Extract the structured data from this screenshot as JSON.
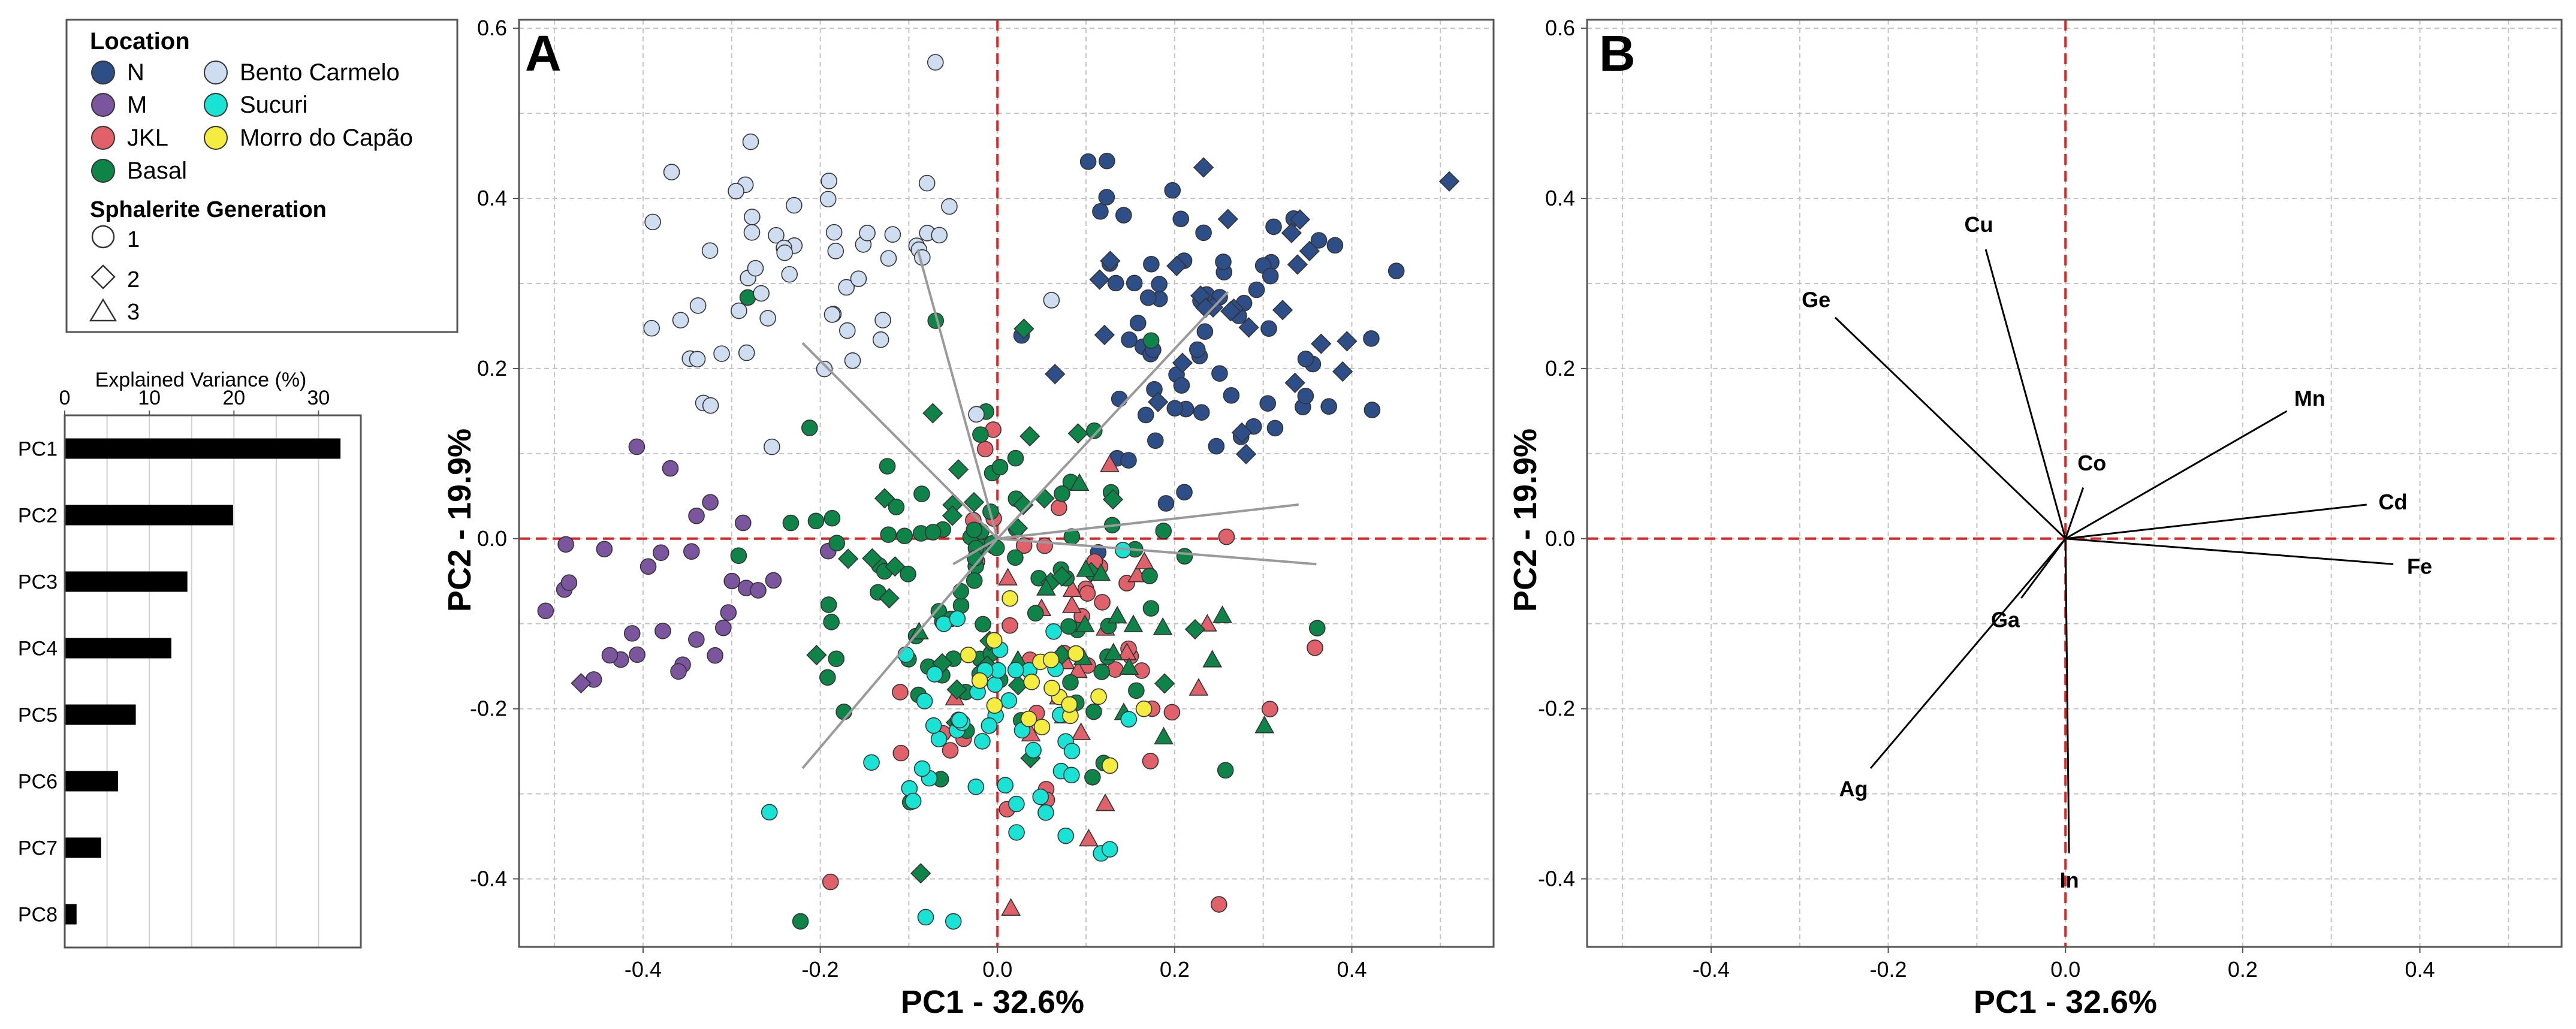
{
  "legend": {
    "location_title": "Location",
    "locations": [
      {
        "name": "N",
        "color": "#2E4E87"
      },
      {
        "name": "M",
        "color": "#7B559E"
      },
      {
        "name": "JKL",
        "color": "#E0616A"
      },
      {
        "name": "Basal",
        "color": "#0F8449"
      },
      {
        "name": "Bento Carmelo",
        "color": "#CFDDF0"
      },
      {
        "name": "Sucuri",
        "color": "#19E3D5"
      },
      {
        "name": "Morro do Capão",
        "color": "#F4EC3E"
      }
    ],
    "generation_title": "Sphalerite Generation",
    "generations": [
      {
        "label": "1",
        "shape": "circle"
      },
      {
        "label": "2",
        "shape": "diamond"
      },
      {
        "label": "3",
        "shape": "triangle"
      }
    ]
  },
  "chart_data": [
    {
      "id": "variance",
      "type": "bar",
      "orientation": "horizontal",
      "title": "Explained Variance (%)",
      "categories": [
        "PC1",
        "PC2",
        "PC3",
        "PC4",
        "PC5",
        "PC6",
        "PC7",
        "PC8"
      ],
      "values": [
        32.6,
        19.9,
        14.5,
        12.6,
        8.4,
        6.3,
        4.3,
        1.4
      ],
      "xlim": [
        0,
        35
      ],
      "xticks": [
        0,
        10,
        20,
        30
      ],
      "grid": true
    },
    {
      "id": "A",
      "type": "scatter",
      "panel_label": "A",
      "xlabel": "PC1 - 32.6%",
      "ylabel": "PC2 - 19.9%",
      "xlim": [
        -0.54,
        0.56
      ],
      "ylim": [
        -0.48,
        0.61
      ],
      "xticks": [
        -0.4,
        -0.2,
        0.0,
        0.2,
        0.4
      ],
      "yticks": [
        -0.4,
        -0.2,
        0.0,
        0.2,
        0.4,
        0.6
      ],
      "reference_lines": {
        "x": 0,
        "y": 0,
        "color": "#E02020"
      },
      "loading_lines": [
        [
          -0.09,
          0.34
        ],
        [
          -0.22,
          0.23
        ],
        [
          0.26,
          0.29
        ],
        [
          0.34,
          0.04
        ],
        [
          0.36,
          -0.03
        ],
        [
          -0.22,
          -0.27
        ],
        [
          -0.05,
          -0.03
        ]
      ],
      "clusters": [
        {
          "location": "N",
          "shape": "circle",
          "n": 70,
          "cx": 0.24,
          "cy": 0.24,
          "sx": 0.09,
          "sy": 0.09,
          "seed": 11
        },
        {
          "location": "N",
          "shape": "diamond",
          "n": 26,
          "cx": 0.24,
          "cy": 0.27,
          "sx": 0.08,
          "sy": 0.07,
          "seed": 12
        },
        {
          "location": "M",
          "shape": "circle",
          "n": 30,
          "cx": -0.37,
          "cy": -0.06,
          "sx": 0.07,
          "sy": 0.09,
          "seed": 21
        },
        {
          "location": "JKL",
          "shape": "circle",
          "n": 40,
          "cx": 0.07,
          "cy": -0.12,
          "sx": 0.1,
          "sy": 0.12,
          "seed": 31
        },
        {
          "location": "JKL",
          "shape": "triangle",
          "n": 22,
          "cx": 0.12,
          "cy": -0.15,
          "sx": 0.1,
          "sy": 0.1,
          "seed": 32
        },
        {
          "location": "Basal",
          "shape": "circle",
          "n": 95,
          "cx": 0.0,
          "cy": -0.05,
          "sx": 0.11,
          "sy": 0.12,
          "seed": 41
        },
        {
          "location": "Basal",
          "shape": "diamond",
          "n": 32,
          "cx": -0.02,
          "cy": 0.0,
          "sx": 0.1,
          "sy": 0.12,
          "seed": 42
        },
        {
          "location": "Basal",
          "shape": "triangle",
          "n": 18,
          "cx": 0.1,
          "cy": -0.12,
          "sx": 0.09,
          "sy": 0.08,
          "seed": 43
        },
        {
          "location": "Bento Carmelo",
          "shape": "circle",
          "n": 55,
          "cx": -0.23,
          "cy": 0.3,
          "sx": 0.1,
          "sy": 0.08,
          "seed": 51
        },
        {
          "location": "Sucuri",
          "shape": "circle",
          "n": 50,
          "cx": -0.02,
          "cy": -0.22,
          "sx": 0.09,
          "sy": 0.09,
          "seed": 61
        },
        {
          "location": "Morro do Capão",
          "shape": "circle",
          "n": 18,
          "cx": 0.05,
          "cy": -0.16,
          "sx": 0.05,
          "sy": 0.06,
          "seed": 71
        }
      ],
      "outliers": [
        {
          "location": "N",
          "shape": "diamond",
          "x": 0.51,
          "y": 0.42
        },
        {
          "location": "Bento Carmelo",
          "shape": "circle",
          "x": -0.07,
          "y": 0.56
        },
        {
          "location": "M",
          "shape": "diamond",
          "x": -0.47,
          "y": -0.17
        },
        {
          "location": "JKL",
          "shape": "circle",
          "x": 0.25,
          "y": -0.43
        }
      ]
    },
    {
      "id": "B",
      "type": "biplot_loadings",
      "panel_label": "B",
      "xlabel": "PC1 - 32.6%",
      "ylabel": "PC2 - 19.9%",
      "xlim": [
        -0.54,
        0.56
      ],
      "ylim": [
        -0.48,
        0.61
      ],
      "xticks": [
        -0.4,
        -0.2,
        0.0,
        0.2,
        0.4
      ],
      "yticks": [
        -0.4,
        -0.2,
        0.0,
        0.2,
        0.4,
        0.6
      ],
      "reference_lines": {
        "x": 0,
        "y": 0,
        "color": "#E02020"
      },
      "vectors": [
        {
          "label": "Cu",
          "x": -0.09,
          "y": 0.34
        },
        {
          "label": "Ge",
          "x": -0.26,
          "y": 0.26
        },
        {
          "label": "Mn",
          "x": 0.25,
          "y": 0.15
        },
        {
          "label": "Co",
          "x": 0.02,
          "y": 0.06
        },
        {
          "label": "Cd",
          "x": 0.34,
          "y": 0.04
        },
        {
          "label": "Fe",
          "x": 0.37,
          "y": -0.03
        },
        {
          "label": "Ga",
          "x": -0.05,
          "y": -0.07
        },
        {
          "label": "Ag",
          "x": -0.22,
          "y": -0.27
        },
        {
          "label": "In",
          "x": 0.004,
          "y": -0.37
        }
      ]
    }
  ]
}
